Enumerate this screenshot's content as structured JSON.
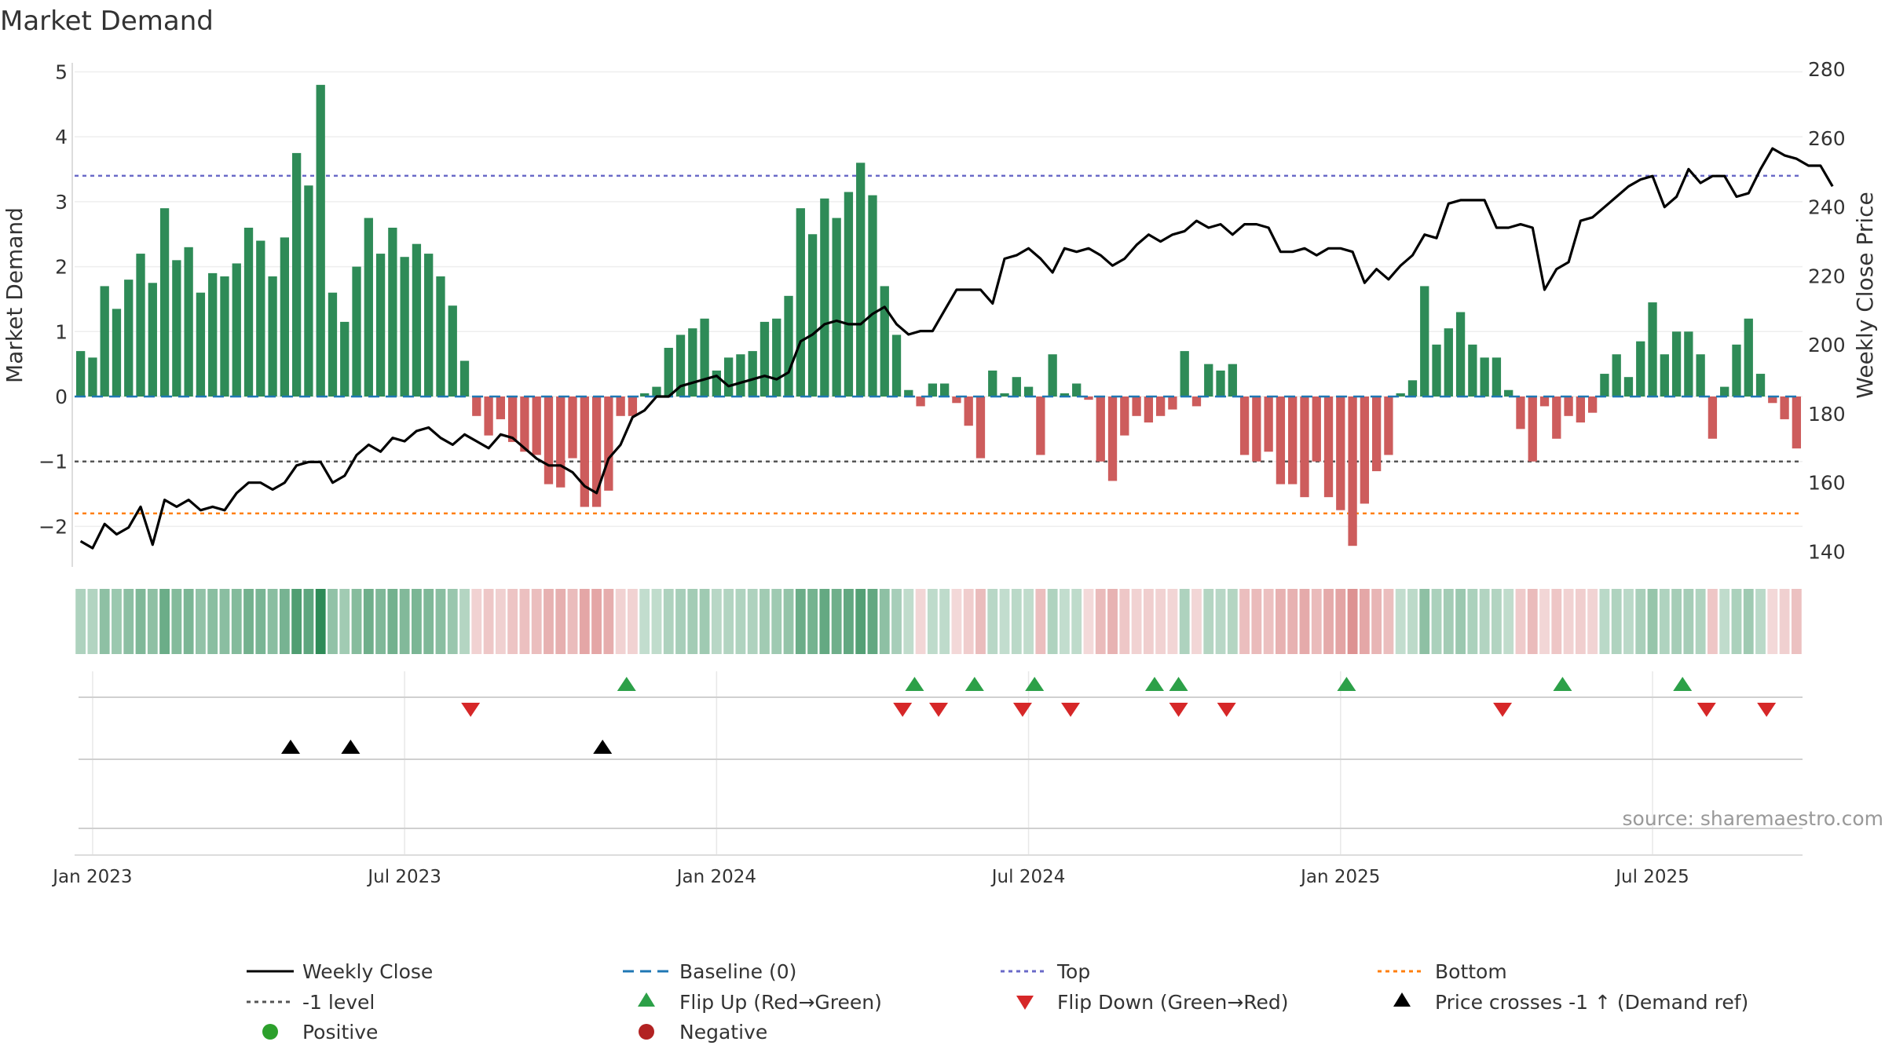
{
  "chart_data": {
    "type": "bar",
    "title": "Market Demand",
    "ylabel_left": "Market Demand",
    "ylabel_right": "Weekly Close Price",
    "ylim_left": [
      -2.6,
      5.2
    ],
    "ylim_right": [
      136,
      283
    ],
    "yticks_left": [
      5,
      4,
      3,
      2,
      1,
      0,
      -1,
      -2
    ],
    "yticks_left_labels": [
      "5",
      "4",
      "3",
      "2",
      "1",
      "0",
      "−1",
      "−2"
    ],
    "yticks_right": [
      280,
      260,
      240,
      220,
      200,
      180,
      160,
      140
    ],
    "x_ticks": [
      {
        "label": "Jan 2023",
        "week": 1.5
      },
      {
        "label": "Jul 2023",
        "week": 27.5
      },
      {
        "label": "Jan 2024",
        "week": 53.5
      },
      {
        "label": "Jul 2024",
        "week": 79.5
      },
      {
        "label": "Jan 2025",
        "week": 105.5
      },
      {
        "label": "Jul 2025",
        "week": 131.5
      }
    ],
    "reference_lines": {
      "baseline": 0,
      "top": 3.4,
      "minus_one": -1,
      "bottom": -1.8
    },
    "series": [
      {
        "name": "Market Demand",
        "axis": "left",
        "values": [
          0.7,
          0.6,
          1.7,
          1.35,
          1.8,
          2.2,
          1.75,
          2.9,
          2.1,
          2.3,
          1.6,
          1.9,
          1.85,
          2.05,
          2.6,
          2.4,
          1.85,
          2.45,
          3.75,
          3.25,
          4.8,
          1.6,
          1.15,
          2.0,
          2.75,
          2.2,
          2.6,
          2.15,
          2.35,
          2.2,
          1.85,
          1.4,
          0.55,
          -0.3,
          -0.6,
          -0.35,
          -0.7,
          -0.85,
          -0.9,
          -1.35,
          -1.4,
          -0.95,
          -1.7,
          -1.7,
          -1.45,
          -0.3,
          -0.3,
          0.05,
          0.15,
          0.75,
          0.95,
          1.05,
          1.2,
          0.4,
          0.6,
          0.65,
          0.7,
          1.15,
          1.2,
          1.55,
          2.9,
          2.5,
          3.05,
          2.75,
          3.15,
          3.6,
          3.1,
          1.7,
          0.95,
          0.1,
          -0.15,
          0.2,
          0.2,
          -0.1,
          -0.45,
          -0.95,
          0.4,
          0.05,
          0.3,
          0.15,
          -0.9,
          0.65,
          0.05,
          0.2,
          -0.05,
          -1.0,
          -1.3,
          -0.6,
          -0.3,
          -0.4,
          -0.3,
          -0.2,
          0.7,
          -0.15,
          0.5,
          0.4,
          0.5,
          -0.9,
          -1.0,
          -0.85,
          -1.35,
          -1.35,
          -1.55,
          -1.0,
          -1.55,
          -1.75,
          -2.3,
          -1.65,
          -1.15,
          -0.9,
          0.05,
          0.25,
          1.7,
          0.8,
          1.05,
          1.3,
          0.8,
          0.6,
          0.6,
          0.1,
          -0.5,
          -1.0,
          -0.15,
          -0.65,
          -0.3,
          -0.4,
          -0.25,
          0.35,
          0.65,
          0.3,
          0.85,
          1.45,
          0.65,
          1.0,
          1.0,
          0.65,
          -0.65,
          0.15,
          0.8,
          1.2,
          0.35,
          -0.1,
          -0.35,
          -0.8
        ]
      },
      {
        "name": "Weekly Close",
        "axis": "right",
        "values": [
          143,
          141,
          148,
          145,
          147,
          153,
          142,
          155,
          153,
          155,
          152,
          153,
          152,
          157,
          160,
          160,
          158,
          160,
          165,
          166,
          166,
          160,
          162,
          168,
          171,
          169,
          173,
          172,
          175,
          176,
          173,
          171,
          174,
          172,
          170,
          174,
          173,
          170,
          167,
          165,
          165,
          163,
          159,
          157,
          167,
          171,
          179,
          181,
          185,
          185,
          188,
          189,
          190,
          191,
          188,
          189,
          190,
          191,
          190,
          192,
          201,
          203,
          206,
          207,
          206,
          206,
          209,
          211,
          206,
          203,
          204,
          204,
          210,
          216,
          216,
          216,
          212,
          225,
          226,
          228,
          225,
          221,
          228,
          227,
          228,
          226,
          223,
          225,
          229,
          232,
          230,
          232,
          233,
          236,
          234,
          235,
          232,
          235,
          235,
          234,
          227,
          227,
          228,
          226,
          228,
          228,
          227,
          218,
          222,
          219,
          223,
          226,
          232,
          231,
          241,
          242,
          242,
          242,
          234,
          234,
          235,
          234,
          216,
          222,
          224,
          236,
          237,
          240,
          243,
          246,
          248,
          249,
          240,
          243,
          251,
          247,
          249,
          249,
          243,
          244,
          251,
          257,
          255,
          254,
          252,
          252,
          246
        ]
      }
    ],
    "markers": {
      "flip_up_weeks": [
        46,
        70,
        75,
        80,
        90,
        92,
        106,
        124,
        134
      ],
      "flip_down_weeks": [
        33,
        69,
        72,
        79,
        83,
        92,
        96,
        119,
        136,
        141
      ],
      "price_cross_weeks": [
        18,
        23,
        44
      ]
    }
  },
  "legend": {
    "weekly_close": "Weekly Close",
    "baseline": "Baseline (0)",
    "top": "Top",
    "bottom": "Bottom",
    "minus_one": "-1 level",
    "flip_up": "Flip Up (Red→Green)",
    "flip_down": "Flip Down (Green→Red)",
    "price_cross": "Price crosses -1 ↑ (Demand ref)",
    "positive": "Positive",
    "negative": "Negative"
  },
  "source": "source: sharemaestro.com",
  "colors": {
    "positive": "#2e8b57",
    "negative": "#cd5c5c",
    "price": "#000000",
    "baseline": "#1f77b4",
    "top": "#6a6ac8",
    "bottom": "#ff7f0e",
    "minus_one": "#555555",
    "flip_up": "#2ca048",
    "flip_down": "#d62728",
    "dot_positive": "#2ca02c",
    "dot_negative": "#b22222"
  }
}
